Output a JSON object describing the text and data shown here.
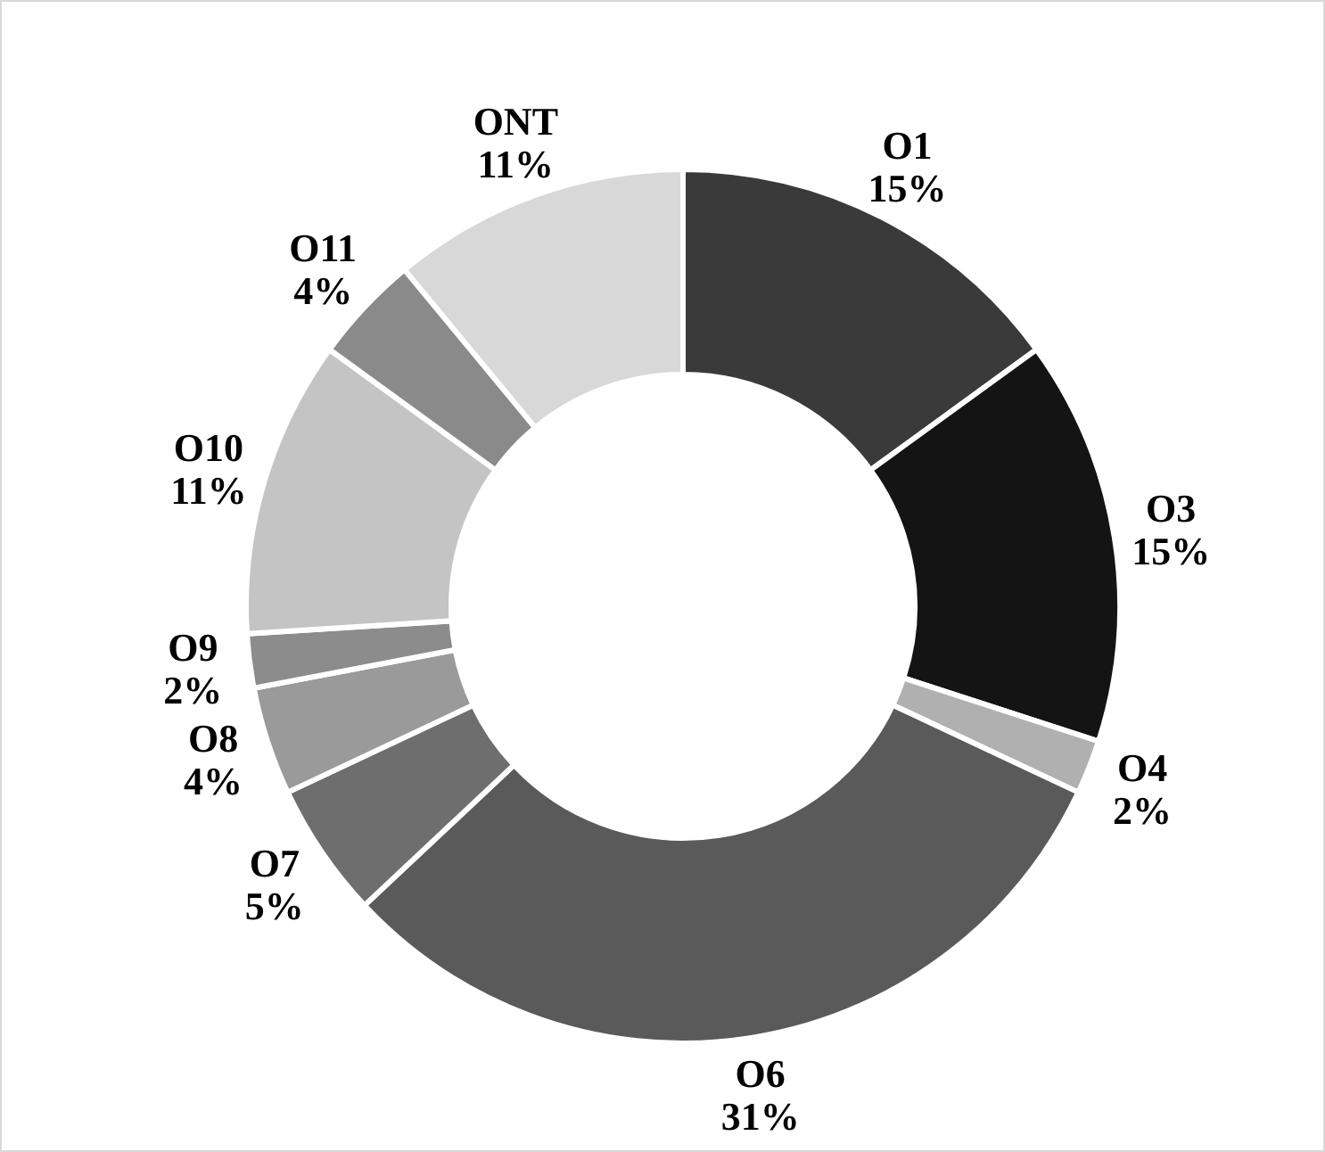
{
  "chart_data": {
    "type": "donut",
    "categories": [
      "O1",
      "O3",
      "O4",
      "O6",
      "O7",
      "O8",
      "O9",
      "O10",
      "O11",
      "ONT"
    ],
    "values": [
      15,
      15,
      2,
      31,
      5,
      4,
      2,
      11,
      4,
      11
    ],
    "value_labels": [
      "15%",
      "15%",
      "2%",
      "31%",
      "5%",
      "4%",
      "2%",
      "11%",
      "4%",
      "11%"
    ],
    "colors": [
      "#3a3a3a",
      "#141414",
      "#b0b0b0",
      "#5a5a5a",
      "#6e6e6e",
      "#9a9a9a",
      "#8c8c8c",
      "#c4c4c4",
      "#8a8a8a",
      "#d8d8d8"
    ]
  }
}
